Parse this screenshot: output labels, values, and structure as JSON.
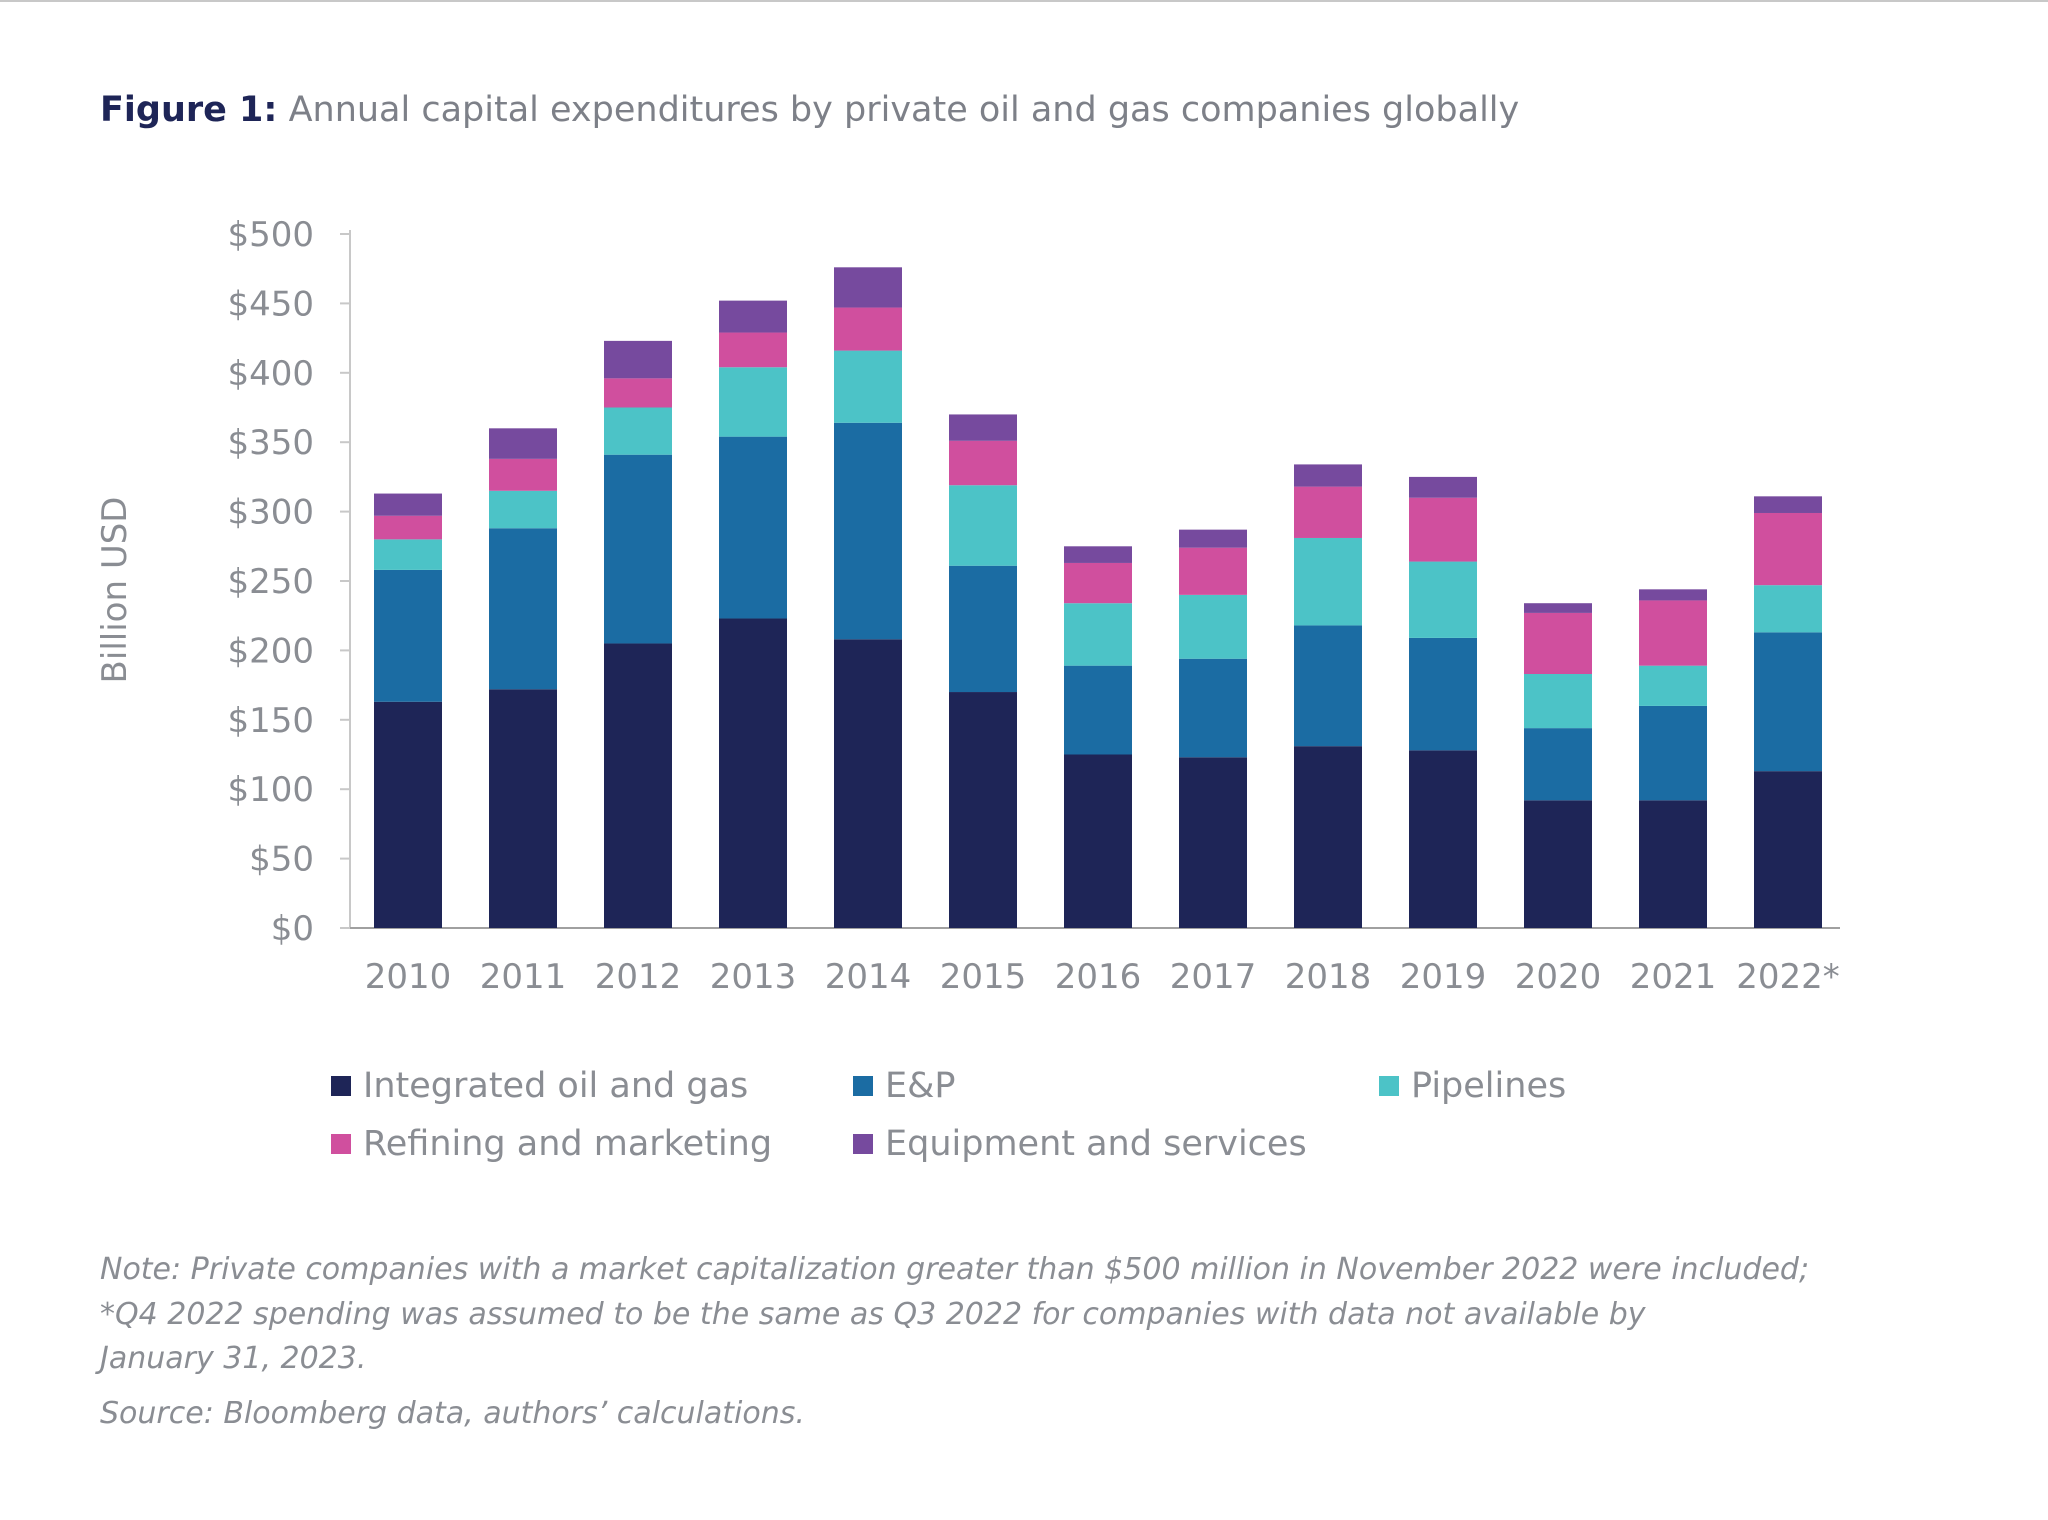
{
  "title": {
    "label": "Figure 1:",
    "text": "Annual capital expenditures by private oil and gas companies globally"
  },
  "chart_data": {
    "type": "bar",
    "stacked": true,
    "categories": [
      "2010",
      "2011",
      "2012",
      "2013",
      "2014",
      "2015",
      "2016",
      "2017",
      "2018",
      "2019",
      "2020",
      "2021",
      "2022*"
    ],
    "ylabel": "Billion USD",
    "xlabel": "",
    "ylim": [
      0,
      500
    ],
    "yticks": [
      0,
      50,
      100,
      150,
      200,
      250,
      300,
      350,
      400,
      450,
      500
    ],
    "ytick_labels": [
      "$0",
      "$50",
      "$100",
      "$150",
      "$200",
      "$250",
      "$300",
      "$350",
      "$400",
      "$450",
      "$500"
    ],
    "grid": false,
    "legend_position": "bottom",
    "series": [
      {
        "name": "Integrated oil and gas",
        "color": "#1e2557",
        "values": [
          163,
          172,
          205,
          223,
          208,
          170,
          125,
          123,
          131,
          128,
          92,
          92,
          113
        ]
      },
      {
        "name": "E&P",
        "color": "#1b6ca3",
        "values": [
          95,
          116,
          136,
          131,
          156,
          91,
          64,
          71,
          87,
          81,
          52,
          68,
          100
        ]
      },
      {
        "name": "Pipelines",
        "color": "#4cc3c7",
        "values": [
          22,
          27,
          34,
          50,
          52,
          58,
          45,
          46,
          63,
          55,
          39,
          29,
          34
        ]
      },
      {
        "name": "Refining and marketing",
        "color": "#d04f9e",
        "values": [
          17,
          23,
          21,
          25,
          31,
          32,
          29,
          34,
          37,
          46,
          44,
          47,
          52
        ]
      },
      {
        "name": "Equipment and services",
        "color": "#764a9e",
        "values": [
          16,
          22,
          27,
          23,
          29,
          19,
          12,
          13,
          16,
          15,
          7,
          8,
          12
        ]
      }
    ]
  },
  "notes": {
    "line1": "Note: Private companies with a market capitalization greater than $500 million in November 2022 were included;",
    "line2": "*Q4 2022 spending was assumed to be the same as Q3 2022 for companies with data not available by",
    "line3": "January 31, 2023.",
    "source": "Source: Bloomberg data, authors’ calculations."
  }
}
